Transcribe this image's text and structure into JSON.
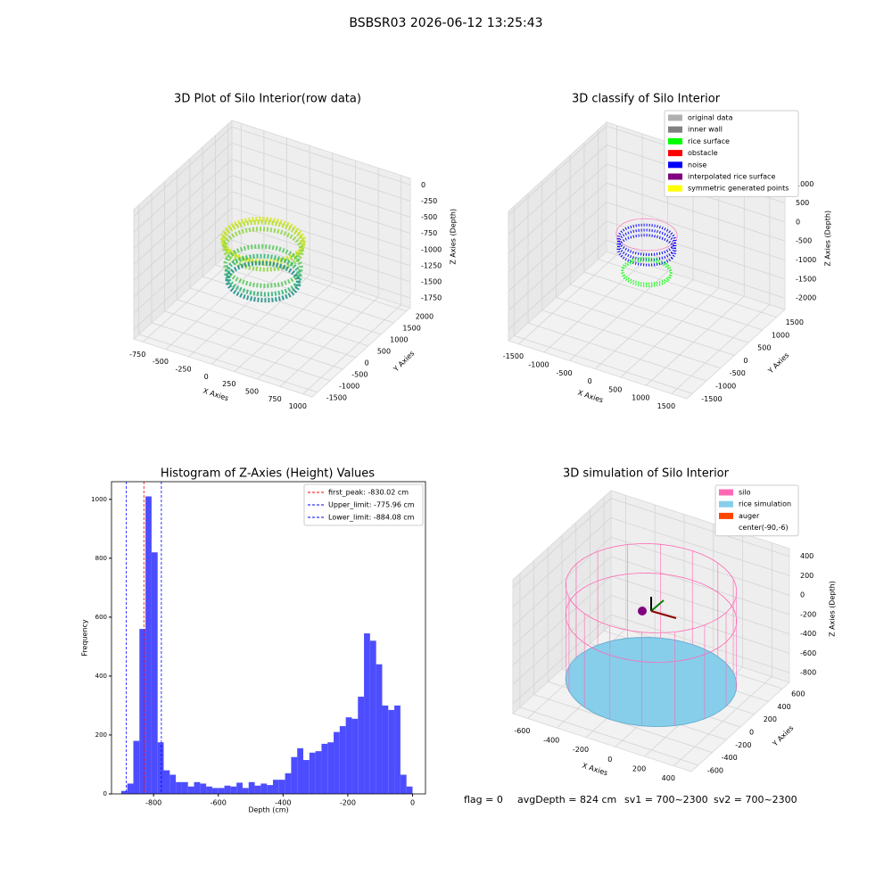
{
  "suptitle": "BSBSR03 2026-06-12 13:25:43",
  "chart_data": [
    {
      "type": "scatter3d",
      "title": "3D Plot of Silo Interior(row data)",
      "xlabel": "X Axies",
      "ylabel": "Y Axies",
      "zlabel": "Z Axies (Depth)",
      "xlim": [
        -850,
        1100
      ],
      "ylim": [
        -1700,
        2150
      ],
      "zlim": [
        -1900,
        100
      ],
      "xticks": [
        -750,
        -500,
        -250,
        0,
        250,
        500,
        750,
        1000
      ],
      "yticks": [
        -1500,
        -1000,
        -500,
        0,
        500,
        1000,
        1500,
        2000
      ],
      "zticks": [
        -1750,
        -1500,
        -1250,
        -1000,
        -750,
        -500,
        -250,
        0
      ]
    },
    {
      "type": "scatter3d",
      "title": "3D classify of Silo Interior",
      "xlabel": "X Axies",
      "ylabel": "Y Axies",
      "zlabel": "Z Axies (Depth)",
      "xlim": [
        -1700,
        1800
      ],
      "ylim": [
        -1700,
        1800
      ],
      "zlim": [
        -2300,
        1100
      ],
      "xticks": [
        -1500,
        -1000,
        -500,
        0,
        500,
        1000,
        1500
      ],
      "yticks": [
        -1500,
        -1000,
        -500,
        0,
        500,
        1000,
        1500
      ],
      "zticks": [
        -2000,
        -1500,
        -1000,
        -500,
        0,
        500,
        1000
      ],
      "legend": [
        {
          "name": "original data",
          "color": "#b0b0b0"
        },
        {
          "name": "inner wall",
          "color": "#808080"
        },
        {
          "name": "rice surface",
          "color": "#00ff00"
        },
        {
          "name": "obstacle",
          "color": "#ff0000"
        },
        {
          "name": "noise",
          "color": "#0000ff"
        },
        {
          "name": "interpolated rice surface",
          "color": "#800080"
        },
        {
          "name": "symmetric generated points",
          "color": "#ffff00"
        }
      ]
    },
    {
      "type": "histogram",
      "title": "Histogram of Z-Axies (Height) Values",
      "xlabel": "Depth (cm)",
      "ylabel": "Frequency",
      "color": "#4d4dff",
      "xlim": [
        -930,
        40
      ],
      "ylim": [
        0,
        1060
      ],
      "xticks": [
        -800,
        -600,
        -400,
        -200,
        0
      ],
      "yticks": [
        0,
        200,
        400,
        600,
        800,
        1000
      ],
      "bins": [
        -900,
        -881.25,
        -862.5,
        -843.75,
        -825,
        -806.25,
        -787.5,
        -768.75,
        -750,
        -731.25,
        -712.5,
        -693.75,
        -675,
        -656.25,
        -637.5,
        -618.75,
        -600,
        -581.25,
        -562.5,
        -543.75,
        -525,
        -506.25,
        -487.5,
        -468.75,
        -450,
        -431.25,
        -412.5,
        -393.75,
        -375,
        -356.25,
        -337.5,
        -318.75,
        -300,
        -281.25,
        -262.5,
        -243.75,
        -225,
        -206.25,
        -187.5,
        -168.75,
        -150,
        -131.25,
        -112.5,
        -93.75,
        -75,
        -56.25,
        -37.5,
        -18.75,
        0
      ],
      "values": [
        10,
        35,
        180,
        560,
        1010,
        820,
        175,
        80,
        65,
        40,
        40,
        25,
        40,
        35,
        25,
        20,
        20,
        28,
        25,
        38,
        20,
        40,
        28,
        35,
        30,
        48,
        48,
        70,
        125,
        155,
        115,
        140,
        145,
        170,
        175,
        210,
        230,
        260,
        255,
        330,
        545,
        520,
        440,
        300,
        285,
        300,
        65,
        25
      ],
      "vlines": [
        {
          "label": "first_peak: -830.02 cm",
          "value": -830.02,
          "color": "#ff0000"
        },
        {
          "label": "Upper_limit: -775.96 cm",
          "value": -775.96,
          "color": "#0000ff"
        },
        {
          "label": "Lower_limit: -884.08 cm",
          "value": -884.08,
          "color": "#0000ff"
        }
      ]
    },
    {
      "type": "scatter3d",
      "title": "3D simulation of Silo Interior",
      "xlabel": "X Axies",
      "ylabel": "Y Axies",
      "zlabel": "Z Axies (Depth)",
      "xlim": [
        -700,
        520
      ],
      "ylim": [
        -700,
        700
      ],
      "zlim": [
        -900,
        480
      ],
      "xticks": [
        -600,
        -400,
        -200,
        0,
        200,
        400
      ],
      "yticks": [
        -600,
        -400,
        -200,
        0,
        200,
        400,
        600
      ],
      "zticks": [
        -800,
        -600,
        -400,
        -200,
        0,
        200,
        400
      ],
      "legend": [
        {
          "name": "silo",
          "color": "#ff69b4"
        },
        {
          "name": "rice simulation",
          "color": "#87ceeb"
        },
        {
          "name": "auger",
          "color": "#ff4500"
        },
        {
          "name": "center(-90,-6)"
        }
      ]
    }
  ],
  "footer": [
    "flag = 0",
    "avgDepth = 824 cm",
    "sv1 = 700~2300",
    "sv2 = 700~2300"
  ]
}
